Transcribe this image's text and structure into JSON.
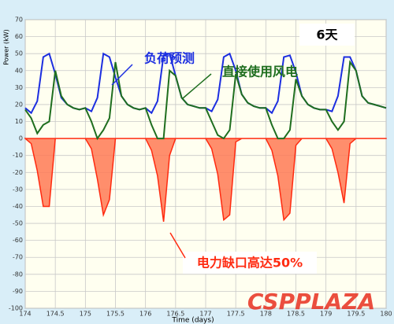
{
  "chart_data": {
    "type": "line",
    "ylabel": "Power (kW)",
    "xlabel": "Time (days)",
    "annotations": [
      "6天",
      "负荷预测",
      "直接使用风电",
      "电力缺口高达50%"
    ],
    "watermark": "CSPPLAZA",
    "xlim": [
      174,
      180
    ],
    "ylim": [
      -100,
      70
    ],
    "xticks": [
      174,
      174.5,
      175,
      175.5,
      176,
      176.5,
      177,
      177.5,
      178,
      178.5,
      179,
      179.5,
      180
    ],
    "yticks": [
      70,
      60,
      50,
      40,
      30,
      20,
      10,
      0,
      -10,
      -20,
      -30,
      -40,
      -50,
      -60,
      -70,
      -80,
      -90,
      -100
    ],
    "grid": true,
    "x": [
      174.0,
      174.1,
      174.2,
      174.3,
      174.4,
      174.5,
      174.6,
      174.7,
      174.8,
      174.9,
      175.0,
      175.1,
      175.2,
      175.3,
      175.4,
      175.5,
      175.6,
      175.7,
      175.8,
      175.9,
      176.0,
      176.1,
      176.2,
      176.3,
      176.4,
      176.5,
      176.6,
      176.7,
      176.8,
      176.9,
      177.0,
      177.1,
      177.2,
      177.3,
      177.4,
      177.5,
      177.6,
      177.7,
      177.8,
      177.9,
      178.0,
      178.1,
      178.2,
      178.3,
      178.4,
      178.5,
      178.6,
      178.7,
      178.8,
      178.9,
      179.0,
      179.1,
      179.2,
      179.3,
      179.4,
      179.5,
      179.6,
      179.7,
      179.8,
      179.9,
      180.0
    ],
    "series": [
      {
        "color": "#1c2ee0",
        "fill": false,
        "values": [
          18,
          15,
          22,
          48,
          50,
          38,
          24,
          20,
          18,
          17,
          18,
          16,
          24,
          50,
          48,
          36,
          25,
          20,
          18,
          17,
          18,
          15,
          22,
          49,
          50,
          37,
          24,
          20,
          19,
          18,
          18,
          16,
          23,
          48,
          50,
          40,
          26,
          21,
          19,
          18,
          18,
          15,
          22,
          48,
          49,
          39,
          25,
          20,
          18,
          17,
          17,
          16,
          25,
          48,
          48,
          40,
          25,
          21,
          20,
          19,
          18
        ]
      },
      {
        "color": "#1f6e1f",
        "fill": false,
        "values": [
          17,
          12,
          3,
          8,
          10,
          40,
          25,
          20,
          18,
          17,
          18,
          10,
          0,
          5,
          12,
          45,
          25,
          20,
          18,
          17,
          18,
          8,
          0,
          0,
          40,
          37,
          24,
          20,
          19,
          18,
          18,
          10,
          2,
          0,
          5,
          38,
          26,
          21,
          19,
          18,
          18,
          8,
          0,
          0,
          5,
          35,
          25,
          20,
          18,
          17,
          17,
          10,
          5,
          10,
          45,
          40,
          25,
          21,
          20,
          19,
          18
        ]
      },
      {
        "color": "#ff2a10",
        "fill": true,
        "values": [
          0,
          -3,
          -19,
          -40,
          -40,
          0,
          0,
          0,
          0,
          0,
          0,
          -6,
          -24,
          -45,
          -36,
          0,
          0,
          0,
          0,
          0,
          0,
          -7,
          -22,
          -49,
          -10,
          0,
          0,
          0,
          0,
          0,
          0,
          -6,
          -21,
          -48,
          -45,
          -2,
          0,
          0,
          0,
          0,
          0,
          -7,
          -22,
          -48,
          -44,
          -4,
          0,
          0,
          0,
          0,
          0,
          -6,
          -20,
          -38,
          -3,
          0,
          0,
          0,
          0,
          0,
          0
        ]
      }
    ]
  }
}
